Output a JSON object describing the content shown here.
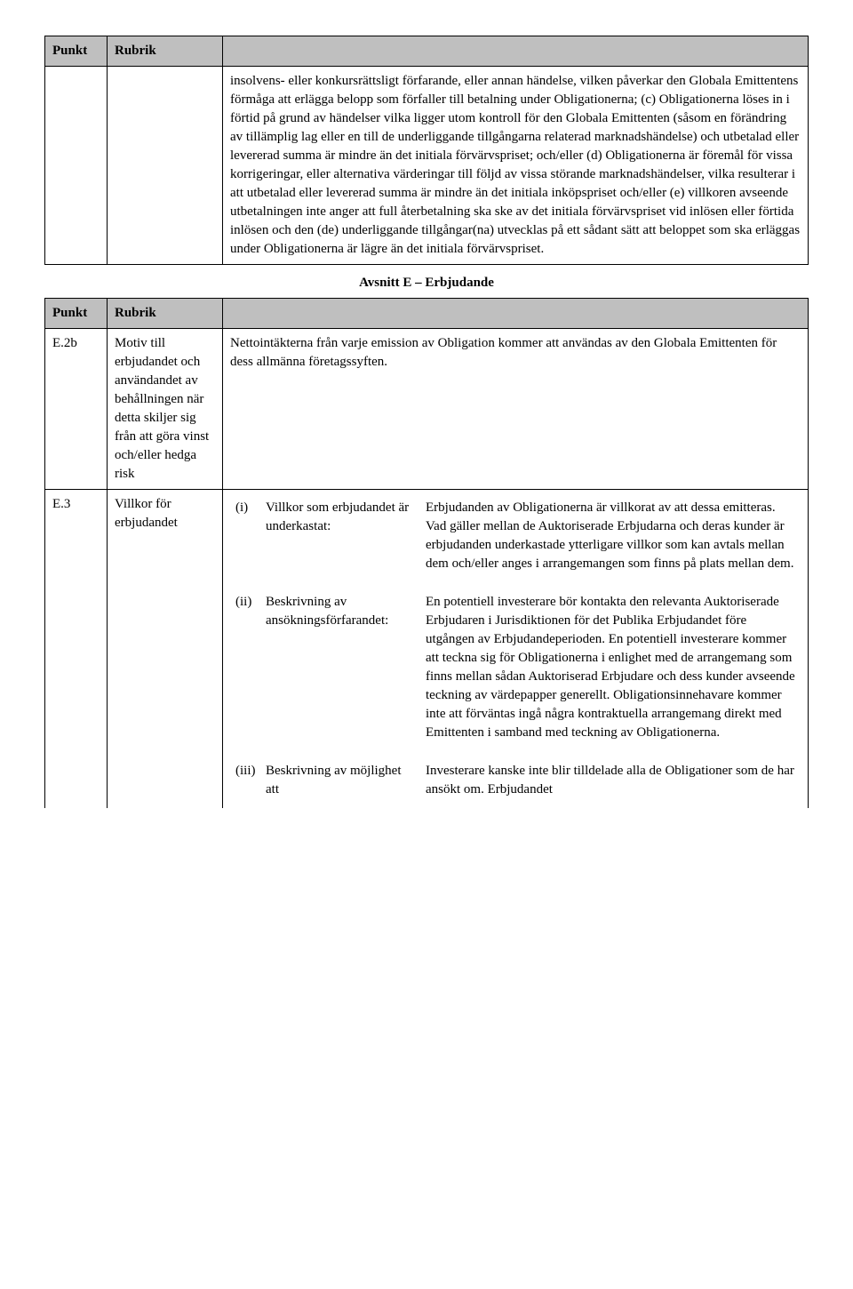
{
  "colors": {
    "header_bg": "#bfbfbf",
    "border": "#000000",
    "text": "#000000",
    "page_bg": "#ffffff"
  },
  "typography": {
    "family": "Times New Roman",
    "body_size_pt": 12,
    "title_size_pt": 12,
    "title_weight": "bold"
  },
  "table1": {
    "header": {
      "c1": "Punkt",
      "c2": "Rubrik"
    },
    "row": {
      "c1": "",
      "c2": "",
      "content": "insolvens- eller konkursrättsligt förfarande, eller annan händelse, vilken påverkar den Globala Emittentens förmåga att erlägga belopp som förfaller till betalning under Obligationerna; (c) Obligationerna löses in i förtid på grund av händelser vilka ligger utom kontroll för den Globala Emittenten (såsom en förändring av tillämplig lag eller en till de underliggande tillgångarna relaterad marknadshändelse) och utbetalad eller levererad summa är mindre än det initiala förvärvspriset; och/eller (d) Obligationerna är föremål för vissa korrigeringar, eller alternativa värderingar till följd av vissa störande marknadshändelser, vilka resulterar i att utbetalad eller levererad summa är mindre än det initiala inköpspriset och/eller (e) villkoren avseende utbetalningen inte anger att full återbetalning ska ske av det initiala förvärvspriset vid inlösen eller förtida inlösen och den (de) underliggande tillgångar(na) utvecklas på ett sådant sätt att beloppet som ska erläggas under Obligationerna är lägre än det initiala förvärvspriset."
    }
  },
  "section_title": "Avsnitt E – Erbjudande",
  "table2": {
    "header": {
      "c1": "Punkt",
      "c2": "Rubrik"
    },
    "rows": [
      {
        "c1": "E.2b",
        "c2": "Motiv till erbjudandet och användandet av behållningen när detta skiljer sig från att göra vinst och/eller hedga risk",
        "content": "Nettointäkterna från varje emission av Obligation kommer att användas av den Globala Emittenten för dess allmänna företagssyften."
      },
      {
        "c1": "E.3",
        "c2": "Villkor för erbjudandet",
        "items": [
          {
            "num": "(i)",
            "label": "Villkor som erbjudandet är underkastat:",
            "desc": "Erbjudanden av Obligationerna är villkorat av att dessa emitteras. Vad gäller mellan de Auktoriserade Erbjudarna och deras kunder är erbjudanden underkastade ytterligare villkor som kan avtals mellan dem och/eller anges i arrangemangen som finns på plats mellan dem."
          },
          {
            "num": "(ii)",
            "label": "Beskrivning av ansökningsförfarandet:",
            "desc": "En potentiell investerare bör kontakta den relevanta Auktoriserade Erbjudaren i Jurisdiktionen för det Publika Erbjudandet före utgången av Erbjudandeperioden. En potentiell investerare kommer att teckna sig för Obligationerna i enlighet med de arrangemang som finns mellan sådan Auktoriserad Erbjudare och dess kunder avseende teckning av värdepapper generellt. Obligationsinnehavare kommer inte att förväntas ingå några kontraktuella arrangemang direkt med Emittenten i samband med teckning av Obligationerna."
          },
          {
            "num": "(iii)",
            "label": "Beskrivning av möjlighet att",
            "desc": "Investerare kanske inte blir tilldelade alla de Obligationer som de har ansökt om. Erbjudandet"
          }
        ]
      }
    ]
  }
}
